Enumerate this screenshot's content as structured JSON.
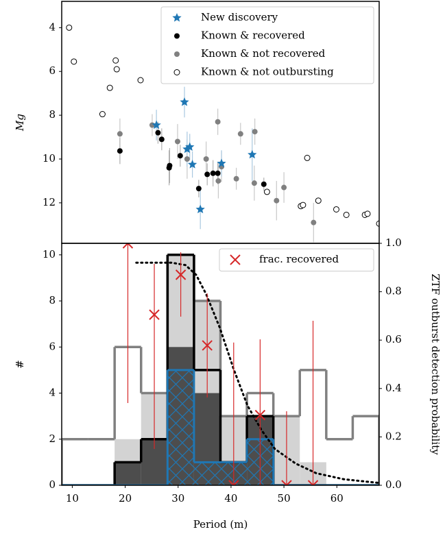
{
  "chart_data": [
    {
      "type": "scatter",
      "ylabel": "Mg",
      "xlim": [
        8,
        68
      ],
      "ylim": [
        13.85,
        2.8
      ],
      "yticks": [
        4,
        6,
        8,
        10,
        12
      ],
      "legend": "upper right",
      "series": [
        {
          "name": "Known & not recovered",
          "marker": "circle",
          "color": "#808080",
          "errcolor": "#c8c8c8",
          "x": [
            19.0,
            25.1,
            29.9,
            31.7,
            35.3,
            37.5,
            37.6,
            38.2,
            41.0,
            41.8,
            44.5,
            44.4,
            48.6,
            50.0,
            55.6
          ],
          "values": [
            8.85,
            8.45,
            9.2,
            10.0,
            10.0,
            8.3,
            11.0,
            10.35,
            10.9,
            8.85,
            8.75,
            11.1,
            11.9,
            11.3,
            12.9
          ],
          "yerr": [
            0.7,
            0.5,
            0.8,
            0.9,
            0.8,
            0.6,
            0.8,
            0.7,
            0.5,
            0.5,
            0.6,
            0.8,
            0.9,
            0.7,
            0.9
          ]
        },
        {
          "name": "Known & recovered",
          "marker": "circle",
          "color": "#000000",
          "errcolor": "#b0b0b0",
          "x": [
            19.0,
            26.2,
            26.9,
            28.4,
            28.3,
            30.4,
            33.9,
            35.5,
            36.6,
            37.5,
            46.2
          ],
          "values": [
            9.63,
            8.8,
            9.1,
            10.3,
            10.4,
            9.85,
            11.35,
            10.7,
            10.65,
            10.65,
            11.15
          ],
          "yerr": [
            0.6,
            0.5,
            0.5,
            0.8,
            0.8,
            0.5,
            0.4,
            0.5,
            0.6,
            0.5,
            0.3
          ]
        },
        {
          "name": "Known & not outbursting",
          "marker": "open",
          "color": "#000000",
          "x": [
            9.4,
            10.3,
            18.2,
            18.4,
            17.1,
            15.7,
            22.9,
            46.8,
            54.4,
            53.2,
            53.6,
            56.5,
            59.9,
            61.8,
            65.3,
            65.8,
            68.0
          ],
          "values": [
            4.0,
            5.55,
            5.5,
            5.9,
            6.75,
            7.95,
            6.4,
            11.5,
            9.95,
            12.15,
            12.1,
            11.9,
            12.3,
            12.55,
            12.55,
            12.5,
            12.95
          ]
        },
        {
          "name": "New discovery",
          "marker": "star",
          "color": "#1f77b4",
          "errcolor": "#a9c8e0",
          "x": [
            31.2,
            25.9,
            31.7,
            32.2,
            32.7,
            38.2,
            44.0,
            34.2
          ],
          "values": [
            7.4,
            8.45,
            9.55,
            9.45,
            10.25,
            10.2,
            9.8,
            12.3
          ],
          "yerr": [
            0.7,
            0.7,
            0.8,
            0.6,
            0.6,
            0.6,
            1.2,
            0.9
          ]
        }
      ],
      "legend_order": [
        3,
        1,
        0,
        2
      ]
    },
    {
      "type": "histogram",
      "xlabel": "Period (m)",
      "ylabel": "#",
      "y2label": "ZTF outburst detection probability",
      "xlim": [
        8,
        68
      ],
      "xticks": [
        10,
        20,
        30,
        40,
        50,
        60
      ],
      "ylim": [
        0,
        10.5
      ],
      "yticks": [
        0,
        2,
        4,
        6,
        8,
        10
      ],
      "y2lim": [
        0,
        1
      ],
      "y2ticks": [
        {
          "value": 0,
          "label": "0.0"
        },
        {
          "value": 0.2,
          "label": "0.2"
        },
        {
          "value": 0.4,
          "label": "0.4"
        },
        {
          "value": 0.6,
          "label": "0.6"
        },
        {
          "value": 0.8,
          "label": "0.8"
        },
        {
          "value": 1,
          "label": "1.0"
        }
      ],
      "bins": [
        8,
        13,
        18,
        23,
        28,
        33,
        38,
        43,
        48,
        53,
        58,
        63,
        68
      ],
      "series": [
        {
          "style": "fill",
          "color": "#d3d3d3",
          "values": [
            0,
            0,
            2,
            4,
            10,
            8,
            3,
            3,
            3,
            1,
            0,
            0
          ]
        },
        {
          "style": "fill",
          "color": "#4d4d4d",
          "values": [
            0,
            0,
            1,
            2,
            6,
            4,
            1,
            3,
            0,
            0,
            0,
            0
          ]
        },
        {
          "style": "step",
          "color": "#808080",
          "values": [
            2,
            2,
            6,
            4,
            10,
            8,
            3,
            4,
            3,
            5,
            2,
            3
          ]
        },
        {
          "style": "step",
          "color": "#000000",
          "values": [
            0,
            0,
            1,
            2,
            10,
            5,
            1,
            3,
            0,
            0,
            0,
            0
          ]
        },
        {
          "style": "hatch",
          "color": "#1f77b4",
          "values": [
            0,
            0,
            0,
            0,
            5,
            1,
            1,
            2,
            0,
            0,
            0,
            0
          ]
        }
      ],
      "overlays": [
        {
          "type": "line",
          "style": "dotted",
          "color": "#000000",
          "axis": "y2",
          "x": [
            22.1,
            28.8,
            31.4,
            33.4,
            35.3,
            37.9,
            40.5,
            43.1,
            45.7,
            48.3,
            52.2,
            56.1,
            61.3,
            67.8
          ],
          "values": [
            0.92,
            0.92,
            0.91,
            0.87,
            0.79,
            0.65,
            0.48,
            0.33,
            0.23,
            0.15,
            0.09,
            0.05,
            0.025,
            0.01
          ]
        },
        {
          "type": "errorbar",
          "name": "frac. recovered",
          "marker": "x",
          "color": "#d62728",
          "axis": "y2",
          "x": [
            20.5,
            25.5,
            30.5,
            35.5,
            40.5,
            45.5,
            50.5,
            55.5
          ],
          "values": [
            1.0,
            0.705,
            0.87,
            0.578,
            0,
            0.29,
            0,
            0
          ],
          "lower": [
            0.34,
            0.15,
            0.697,
            0.363,
            0,
            0,
            0,
            0
          ],
          "upper": [
            1.0,
            0.915,
            0.963,
            0.793,
            0.59,
            0.603,
            0.306,
            0.68
          ]
        }
      ],
      "legend": "upper right"
    }
  ]
}
